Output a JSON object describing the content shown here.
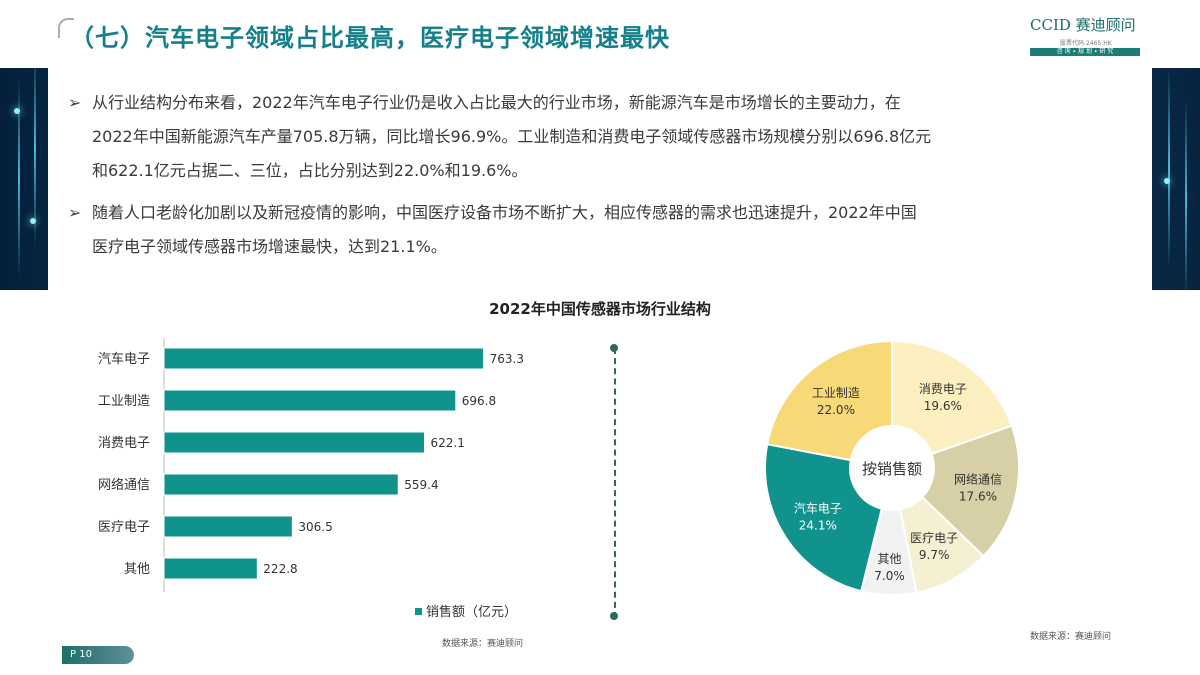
{
  "header": {
    "title": "（七）汽车电子领域占比最高，医疗电子领域增速最快",
    "logo_main": "CCID 赛迪顾问",
    "logo_sub": "股票代码:2465.HK",
    "logo_tagline": "咨 询 ∙ 规 划 ∙ 研 究"
  },
  "bullets": [
    {
      "line1": "从行业结构分布来看，2022年汽车电子行业仍是收入占比最大的行业市场，新能源汽车是市场增长的主要动力，在",
      "line2": "2022年中国新能源汽车产量705.8万辆，同比增长96.9%。工业制造和消费电子领域传感器市场规模分别以696.8亿元",
      "line3": "和622.1亿元占据二、三位，占比分别达到22.0%和19.6%。"
    },
    {
      "line1": "随着人口老龄化加剧以及新冠疫情的影响，中国医疗设备市场不断扩大，相应传感器的需求也迅速提升，2022年中国",
      "line2": "医疗电子领域传感器市场增速最快，达到21.1%。"
    }
  ],
  "bullet_marker": "➢",
  "chart_title": "2022年中国传感器市场行业结构",
  "chart_data": [
    {
      "type": "bar",
      "orientation": "horizontal",
      "categories": [
        "汽车电子",
        "工业制造",
        "消费电子",
        "网络通信",
        "医疗电子",
        "其他"
      ],
      "series": [
        {
          "name": "销售额（亿元）",
          "values": [
            763.3,
            696.8,
            622.1,
            559.4,
            306.5,
            222.8
          ]
        }
      ],
      "value_labels": [
        "763.3",
        "696.8",
        "622.1",
        "559.4",
        "306.5",
        "222.8"
      ],
      "xlim": [
        0,
        800
      ],
      "color": "#0f938c",
      "legend_position": "bottom"
    },
    {
      "type": "pie",
      "donut": true,
      "center_label": "按销售额",
      "slices": [
        {
          "label": "消费电子",
          "pct_label": "19.6%",
          "value": 19.6,
          "color": "#fcefc0"
        },
        {
          "label": "网络通信",
          "pct_label": "17.6%",
          "value": 17.6,
          "color": "#d7cfa5"
        },
        {
          "label": "医疗电子",
          "pct_label": "9.7%",
          "value": 9.7,
          "color": "#f6f0d2"
        },
        {
          "label": "其他",
          "pct_label": "7.0%",
          "value": 7.0,
          "color": "#f2f2f2"
        },
        {
          "label": "汽车电子",
          "pct_label": "24.1%",
          "value": 24.1,
          "color": "#0f938c"
        },
        {
          "label": "工业制造",
          "pct_label": "22.0%",
          "value": 22.0,
          "color": "#f8d978"
        }
      ]
    }
  ],
  "sources": {
    "left": "数据来源：赛迪顾问",
    "right": "数据来源：赛迪顾问"
  },
  "page_number": "P 10"
}
